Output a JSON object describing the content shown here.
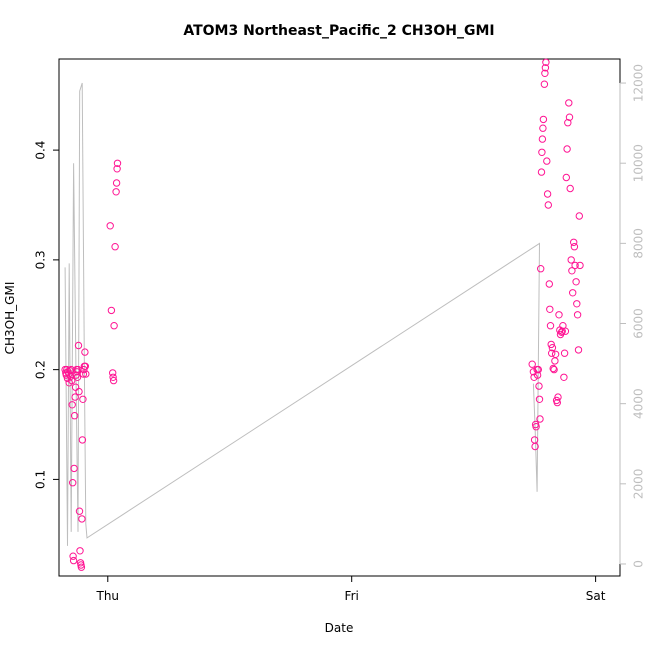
{
  "chart_data": {
    "type": "scatter",
    "title": "ATOM3 Northeast_Pacific_2 CH3OH_GMI",
    "xlabel": "Date",
    "ylabel": "CH3OH_GMI",
    "x_ticks": [
      "Thu",
      "Fri",
      "Sat"
    ],
    "x_tick_values": [
      0,
      1,
      2
    ],
    "xlim": [
      -0.2,
      2.1
    ],
    "ylim": [
      0.012,
      0.483
    ],
    "y_ticks": [
      0.1,
      0.2,
      0.3,
      0.4
    ],
    "y2_ticks": [
      0,
      2000,
      4000,
      6000,
      8000,
      10000,
      12000
    ],
    "y2lim": [
      -300,
      12600
    ],
    "grid": false,
    "colors": {
      "points": "#ff1493",
      "line": "#bebebe",
      "right_axis": "#bebebe"
    },
    "series": [
      {
        "values": [
          [
            -0.175,
            0.2
          ],
          [
            -0.172,
            0.197
          ],
          [
            -0.17,
            0.195
          ],
          [
            -0.168,
            0.2
          ],
          [
            -0.165,
            0.192
          ],
          [
            -0.163,
            0.198
          ],
          [
            -0.16,
            0.196
          ],
          [
            -0.158,
            0.188
          ],
          [
            -0.155,
            0.199
          ],
          [
            -0.152,
            0.194
          ],
          [
            -0.15,
            0.2
          ],
          [
            -0.148,
            0.19
          ],
          [
            -0.146,
            0.168
          ],
          [
            -0.144,
            0.097
          ],
          [
            -0.142,
            0.03
          ],
          [
            -0.14,
            0.026
          ],
          [
            -0.138,
            0.11
          ],
          [
            -0.136,
            0.158
          ],
          [
            -0.134,
            0.175
          ],
          [
            -0.132,
            0.184
          ],
          [
            -0.13,
            0.195
          ],
          [
            -0.128,
            0.2
          ],
          [
            -0.126,
            0.198
          ],
          [
            -0.124,
            0.193
          ],
          [
            -0.122,
            0.2
          ],
          [
            -0.12,
            0.222
          ],
          [
            -0.118,
            0.18
          ],
          [
            -0.116,
            0.071
          ],
          [
            -0.114,
            0.035
          ],
          [
            -0.112,
            0.024
          ],
          [
            -0.11,
            0.022
          ],
          [
            -0.108,
            0.02
          ],
          [
            -0.106,
            0.064
          ],
          [
            -0.104,
            0.136
          ],
          [
            -0.102,
            0.173
          ],
          [
            -0.1,
            0.196
          ],
          [
            -0.098,
            0.2
          ],
          [
            -0.096,
            0.203
          ],
          [
            -0.094,
            0.216
          ],
          [
            -0.092,
            0.203
          ],
          [
            -0.09,
            0.196
          ],
          [
            0.01,
            0.331
          ],
          [
            0.015,
            0.254
          ],
          [
            0.02,
            0.197
          ],
          [
            0.022,
            0.193
          ],
          [
            0.024,
            0.19
          ],
          [
            0.026,
            0.24
          ],
          [
            0.03,
            0.312
          ],
          [
            0.034,
            0.362
          ],
          [
            0.036,
            0.37
          ],
          [
            0.038,
            0.383
          ],
          [
            0.04,
            0.388
          ],
          [
            1.74,
            0.205
          ],
          [
            1.745,
            0.198
          ],
          [
            1.748,
            0.193
          ],
          [
            1.75,
            0.136
          ],
          [
            1.752,
            0.13
          ],
          [
            1.754,
            0.15
          ],
          [
            1.756,
            0.148
          ],
          [
            1.76,
            0.2
          ],
          [
            1.762,
            0.195
          ],
          [
            1.765,
            0.2
          ],
          [
            1.768,
            0.185
          ],
          [
            1.77,
            0.173
          ],
          [
            1.772,
            0.155
          ],
          [
            1.775,
            0.292
          ],
          [
            1.778,
            0.38
          ],
          [
            1.78,
            0.398
          ],
          [
            1.782,
            0.41
          ],
          [
            1.784,
            0.42
          ],
          [
            1.786,
            0.428
          ],
          [
            1.79,
            0.46
          ],
          [
            1.792,
            0.47
          ],
          [
            1.794,
            0.475
          ],
          [
            1.796,
            0.48
          ],
          [
            1.8,
            0.39
          ],
          [
            1.803,
            0.36
          ],
          [
            1.806,
            0.35
          ],
          [
            1.81,
            0.278
          ],
          [
            1.812,
            0.255
          ],
          [
            1.815,
            0.24
          ],
          [
            1.818,
            0.223
          ],
          [
            1.82,
            0.215
          ],
          [
            1.823,
            0.22
          ],
          [
            1.826,
            0.201
          ],
          [
            1.83,
            0.2
          ],
          [
            1.833,
            0.208
          ],
          [
            1.836,
            0.214
          ],
          [
            1.84,
            0.172
          ],
          [
            1.843,
            0.17
          ],
          [
            1.846,
            0.175
          ],
          [
            1.85,
            0.25
          ],
          [
            1.853,
            0.236
          ],
          [
            1.856,
            0.232
          ],
          [
            1.86,
            0.234
          ],
          [
            1.863,
            0.235
          ],
          [
            1.866,
            0.24
          ],
          [
            1.87,
            0.193
          ],
          [
            1.873,
            0.215
          ],
          [
            1.876,
            0.235
          ],
          [
            1.88,
            0.375
          ],
          [
            1.883,
            0.401
          ],
          [
            1.886,
            0.425
          ],
          [
            1.89,
            0.443
          ],
          [
            1.893,
            0.43
          ],
          [
            1.896,
            0.365
          ],
          [
            1.9,
            0.3
          ],
          [
            1.903,
            0.29
          ],
          [
            1.906,
            0.27
          ],
          [
            1.91,
            0.316
          ],
          [
            1.913,
            0.312
          ],
          [
            1.916,
            0.295
          ],
          [
            1.92,
            0.28
          ],
          [
            1.923,
            0.26
          ],
          [
            1.926,
            0.25
          ],
          [
            1.93,
            0.218
          ],
          [
            1.933,
            0.34
          ],
          [
            1.936,
            0.295
          ]
        ]
      }
    ],
    "y2_series": [
      {
        "values": [
          [
            -0.175,
            7400
          ],
          [
            -0.165,
            450
          ],
          [
            -0.158,
            7500
          ],
          [
            -0.15,
            800
          ],
          [
            -0.14,
            10000
          ],
          [
            -0.13,
            4500
          ],
          [
            -0.122,
            800
          ],
          [
            -0.115,
            11800
          ],
          [
            -0.105,
            12000
          ],
          [
            -0.095,
            4200
          ],
          [
            -0.09,
            1000
          ],
          [
            -0.085,
            650
          ],
          [
            1.77,
            8000
          ],
          [
            1.76,
            1800
          ],
          [
            1.752,
            3400
          ],
          [
            1.745,
            4500
          ]
        ]
      }
    ]
  }
}
